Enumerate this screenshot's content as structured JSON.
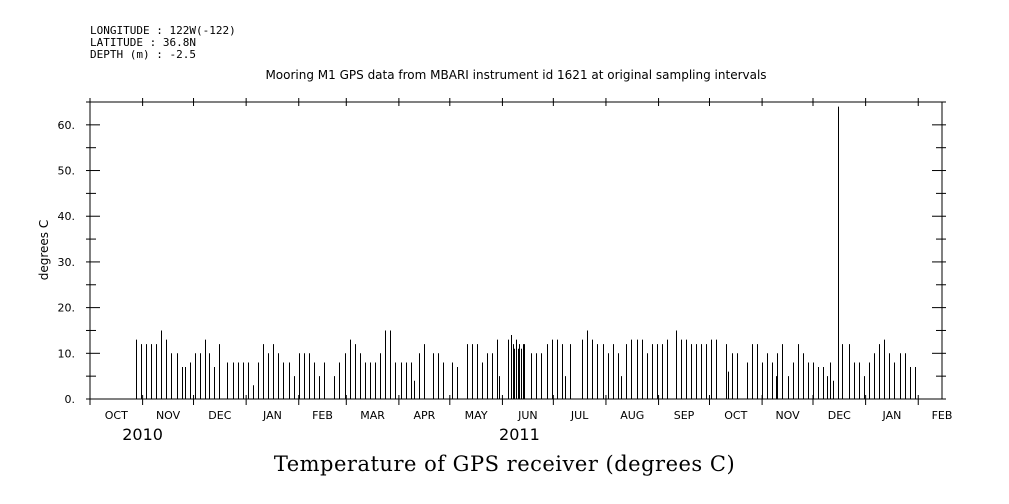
{
  "header": {
    "longitude": "LONGITUDE : 122W(-122)",
    "latitude": "LATITUDE : 36.8N",
    "depth": "DEPTH (m) : -2.5"
  },
  "chart_data": {
    "type": "bar",
    "title": "Mooring M1 GPS data from MBARI instrument id 1621 at original sampling intervals",
    "caption": "Temperature of GPS receiver (degrees C)",
    "ylabel": "degrees C",
    "xlabel": "",
    "ylim": [
      0,
      65
    ],
    "yticks": [
      0,
      10,
      20,
      30,
      40,
      50,
      60
    ],
    "ytick_labels": [
      "0.",
      "10.",
      "20.",
      "30.",
      "40.",
      "50.",
      "60."
    ],
    "xlim_days": [
      0,
      502
    ],
    "months": [
      "OCT",
      "NOV",
      "DEC",
      "JAN",
      "FEB",
      "MAR",
      "APR",
      "MAY",
      "JUN",
      "JUL",
      "AUG",
      "SEP",
      "OCT",
      "NOV",
      "DEC",
      "JAN",
      "FEB"
    ],
    "month_start_days": [
      0,
      31,
      61,
      92,
      123,
      151,
      182,
      212,
      243,
      273,
      304,
      335,
      365,
      396,
      426,
      457,
      488
    ],
    "years": [
      {
        "label": "2010",
        "day": 31
      },
      {
        "label": "2011",
        "day": 253
      }
    ],
    "grid": false,
    "points": [
      [
        27,
        13
      ],
      [
        30,
        12
      ],
      [
        33,
        12
      ],
      [
        36,
        12
      ],
      [
        39,
        12
      ],
      [
        42,
        15
      ],
      [
        45,
        13
      ],
      [
        48,
        10
      ],
      [
        51,
        10
      ],
      [
        54,
        7
      ],
      [
        56,
        7
      ],
      [
        59,
        8
      ],
      [
        62,
        10
      ],
      [
        65,
        10
      ],
      [
        68,
        13
      ],
      [
        70,
        10
      ],
      [
        73,
        7
      ],
      [
        76,
        12
      ],
      [
        81,
        8
      ],
      [
        84,
        8
      ],
      [
        87,
        8
      ],
      [
        90,
        8
      ],
      [
        93,
        8
      ],
      [
        96,
        3
      ],
      [
        99,
        8
      ],
      [
        102,
        12
      ],
      [
        105,
        10
      ],
      [
        108,
        12
      ],
      [
        111,
        10
      ],
      [
        114,
        8
      ],
      [
        117,
        8
      ],
      [
        120,
        5
      ],
      [
        123,
        10
      ],
      [
        126,
        10
      ],
      [
        129,
        10
      ],
      [
        132,
        8
      ],
      [
        135,
        5
      ],
      [
        138,
        8
      ],
      [
        144,
        5
      ],
      [
        147,
        8
      ],
      [
        150,
        10
      ],
      [
        153,
        13
      ],
      [
        156,
        12
      ],
      [
        159,
        10
      ],
      [
        162,
        8
      ],
      [
        165,
        8
      ],
      [
        168,
        8
      ],
      [
        171,
        10
      ],
      [
        174,
        15
      ],
      [
        177,
        15
      ],
      [
        180,
        8
      ],
      [
        183,
        8
      ],
      [
        186,
        8
      ],
      [
        189,
        8
      ],
      [
        191,
        4
      ],
      [
        194,
        10
      ],
      [
        197,
        12
      ],
      [
        202,
        10
      ],
      [
        205,
        10
      ],
      [
        208,
        8
      ],
      [
        213,
        8
      ],
      [
        216,
        7
      ],
      [
        222,
        12
      ],
      [
        225,
        12
      ],
      [
        228,
        12
      ],
      [
        231,
        8
      ],
      [
        234,
        10
      ],
      [
        237,
        10
      ],
      [
        240,
        13
      ],
      [
        241,
        5
      ],
      [
        246,
        13
      ],
      [
        248,
        14
      ],
      [
        249,
        12
      ],
      [
        250,
        11
      ],
      [
        251,
        13
      ],
      [
        252,
        11
      ],
      [
        253,
        12
      ],
      [
        254,
        11
      ],
      [
        255,
        12
      ],
      [
        256,
        12
      ],
      [
        260,
        10
      ],
      [
        263,
        10
      ],
      [
        266,
        10
      ],
      [
        269,
        12
      ],
      [
        272,
        13
      ],
      [
        275,
        13
      ],
      [
        278,
        12
      ],
      [
        280,
        5
      ],
      [
        283,
        12
      ],
      [
        290,
        13
      ],
      [
        293,
        15
      ],
      [
        296,
        13
      ],
      [
        299,
        12
      ],
      [
        302,
        12
      ],
      [
        305,
        10
      ],
      [
        308,
        12
      ],
      [
        311,
        10
      ],
      [
        313,
        5
      ],
      [
        316,
        12
      ],
      [
        319,
        13
      ],
      [
        322,
        13
      ],
      [
        325,
        13
      ],
      [
        328,
        10
      ],
      [
        331,
        12
      ],
      [
        334,
        12
      ],
      [
        337,
        12
      ],
      [
        340,
        13
      ],
      [
        345,
        15
      ],
      [
        348,
        13
      ],
      [
        351,
        13
      ],
      [
        354,
        12
      ],
      [
        357,
        12
      ],
      [
        360,
        12
      ],
      [
        363,
        12
      ],
      [
        366,
        13
      ],
      [
        369,
        13
      ],
      [
        375,
        12
      ],
      [
        376,
        6
      ],
      [
        378,
        10
      ],
      [
        381,
        10
      ],
      [
        387,
        8
      ],
      [
        390,
        12
      ],
      [
        393,
        12
      ],
      [
        396,
        8
      ],
      [
        399,
        10
      ],
      [
        402,
        8
      ],
      [
        404,
        5
      ],
      [
        405,
        10
      ],
      [
        408,
        12
      ],
      [
        411,
        5
      ],
      [
        414,
        8
      ],
      [
        417,
        12
      ],
      [
        420,
        10
      ],
      [
        423,
        8
      ],
      [
        426,
        8
      ],
      [
        429,
        7
      ],
      [
        432,
        7
      ],
      [
        434,
        5
      ],
      [
        436,
        8
      ],
      [
        438,
        4
      ],
      [
        441,
        64
      ],
      [
        443,
        12
      ],
      [
        447,
        12
      ],
      [
        450,
        8
      ],
      [
        453,
        8
      ],
      [
        456,
        5
      ],
      [
        459,
        8
      ],
      [
        462,
        10
      ],
      [
        465,
        12
      ],
      [
        468,
        13
      ],
      [
        471,
        10
      ],
      [
        474,
        8
      ],
      [
        477,
        10
      ],
      [
        480,
        10
      ],
      [
        483,
        7
      ],
      [
        486,
        7
      ]
    ]
  }
}
